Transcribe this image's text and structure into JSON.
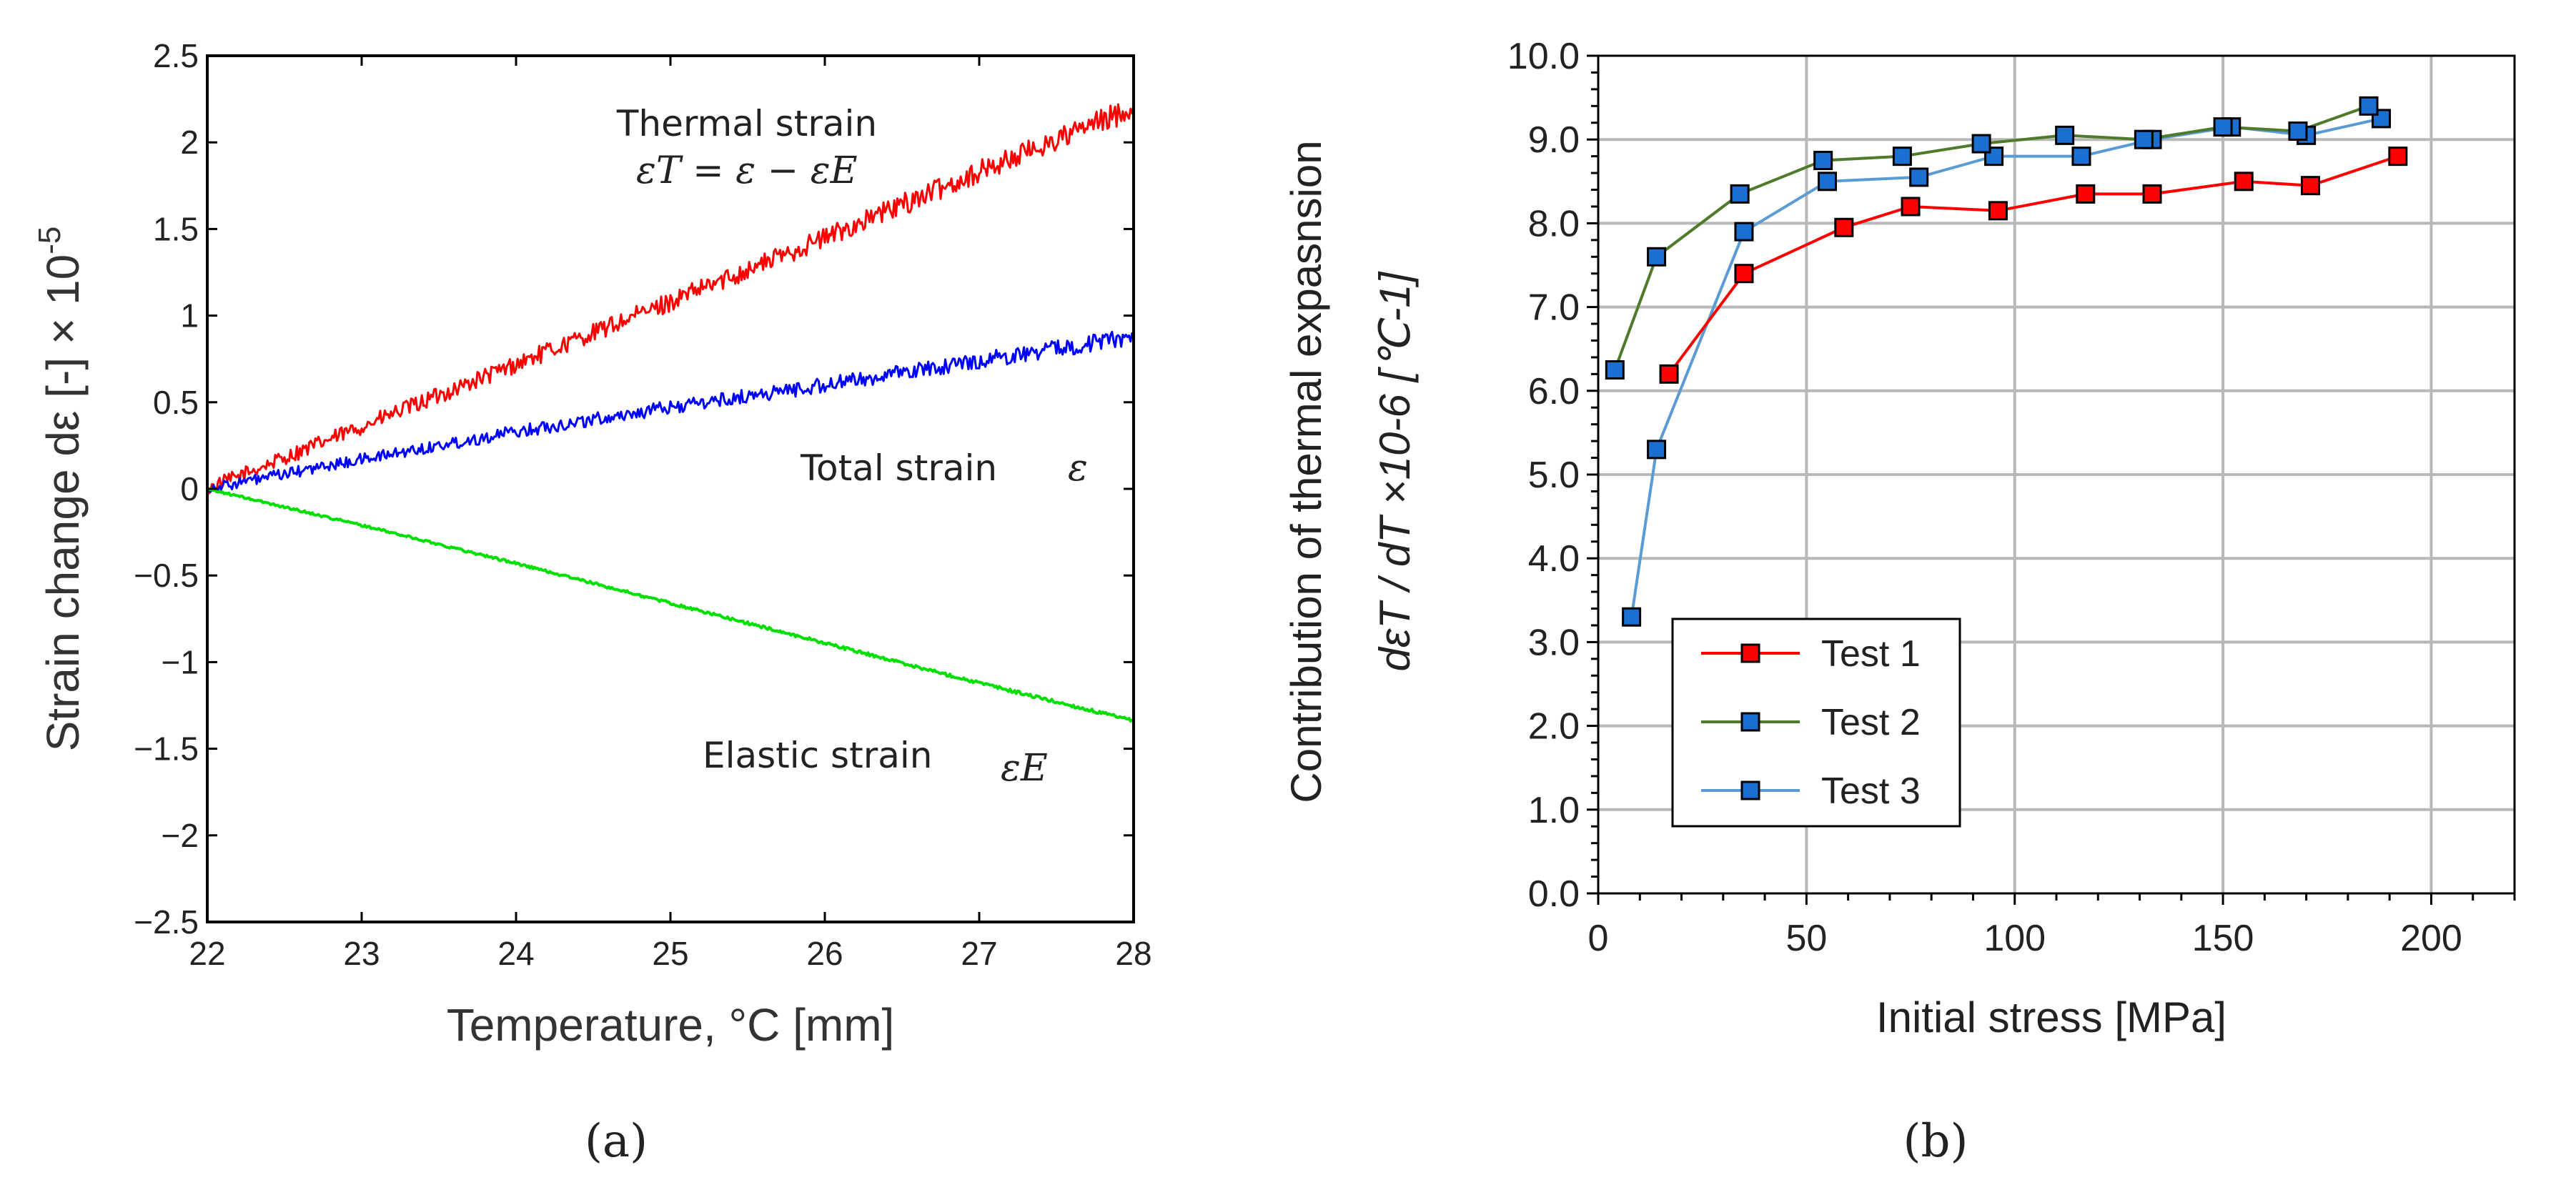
{
  "chart_data": [
    {
      "panel_label": "(a)",
      "type": "line",
      "xlabel": "Temperature, °C [mm]",
      "ylabel": "Strain change dε [-] × 10",
      "ylabel_exponent": "-5",
      "xlim": [
        22,
        28
      ],
      "ylim": [
        -2.5,
        2.5
      ],
      "xticks": [
        "22",
        "23",
        "24",
        "25",
        "26",
        "27",
        "28"
      ],
      "yticks": [
        "2.5",
        "2",
        "1.5",
        "1",
        "0.5",
        "0",
        "−0.5",
        "−1",
        "−1.5",
        "−2",
        "−2.5"
      ],
      "grid": false,
      "series": [
        {
          "name": "Thermal strain",
          "color": "#ff0000",
          "x": [
            22,
            23,
            24,
            25,
            26,
            27,
            28
          ],
          "y": [
            0.0,
            0.36,
            0.72,
            1.08,
            1.45,
            1.83,
            2.2
          ],
          "noise": 0.07
        },
        {
          "name": "Total strain",
          "color": "#0000ff",
          "x": [
            22,
            23,
            24,
            25,
            26,
            27,
            28
          ],
          "y": [
            0.0,
            0.17,
            0.33,
            0.47,
            0.6,
            0.74,
            0.88
          ],
          "noise": 0.05
        },
        {
          "name": "Elastic strain",
          "color": "#00e000",
          "x": [
            22,
            23,
            24,
            25,
            26,
            27,
            28
          ],
          "y": [
            0.0,
            -0.21,
            -0.43,
            -0.66,
            -0.89,
            -1.12,
            -1.34
          ],
          "noise": 0.01
        }
      ],
      "annotations": {
        "thermal_label": "Thermal strain",
        "thermal_formula": "εT = ε − εE",
        "total_label": "Total strain",
        "total_symbol": "ε",
        "elastic_label": "Elastic strain",
        "elastic_symbol": "εE"
      }
    },
    {
      "panel_label": "(b)",
      "type": "line",
      "xlabel": "Initial stress  [MPa]",
      "ylabel_line1": "Contribution of thermal expasnsion",
      "ylabel_line2": "dεT / dT ×10-6 [℃-1]",
      "xlim": [
        0,
        220
      ],
      "ylim": [
        0.0,
        10.0
      ],
      "xticks": [
        "0",
        "50",
        "100",
        "150",
        "200"
      ],
      "yticks": [
        "10.0",
        "9.0",
        "8.0",
        "7.0",
        "6.0",
        "5.0",
        "4.0",
        "3.0",
        "2.0",
        "1.0",
        "0.0"
      ],
      "grid": true,
      "legend_position": "bottom-left",
      "marker_fill": "#1a6fd1",
      "series": [
        {
          "name": "Test 1",
          "color": "#ff0000",
          "marker_fill": "#ff0000",
          "x": [
            17,
            35,
            59,
            75,
            96,
            117,
            133,
            155,
            171,
            192
          ],
          "y": [
            6.2,
            7.4,
            7.95,
            8.2,
            8.15,
            8.35,
            8.35,
            8.5,
            8.45,
            8.8
          ]
        },
        {
          "name": "Test 2",
          "color": "#4e7a2a",
          "marker_fill": "#1a6fd1",
          "x": [
            4,
            14,
            34,
            54,
            73,
            92,
            112,
            131,
            150,
            168,
            185
          ],
          "y": [
            6.25,
            7.6,
            8.35,
            8.75,
            8.8,
            8.95,
            9.05,
            9.0,
            9.15,
            9.1,
            9.4
          ]
        },
        {
          "name": "Test 3",
          "color": "#5b9bd5",
          "marker_fill": "#1a6fd1",
          "x": [
            8,
            14,
            35,
            55,
            77,
            95,
            116,
            133,
            152,
            170,
            188
          ],
          "y": [
            3.3,
            5.3,
            7.9,
            8.5,
            8.55,
            8.8,
            8.8,
            9.0,
            9.15,
            9.05,
            9.25
          ]
        }
      ]
    }
  ]
}
